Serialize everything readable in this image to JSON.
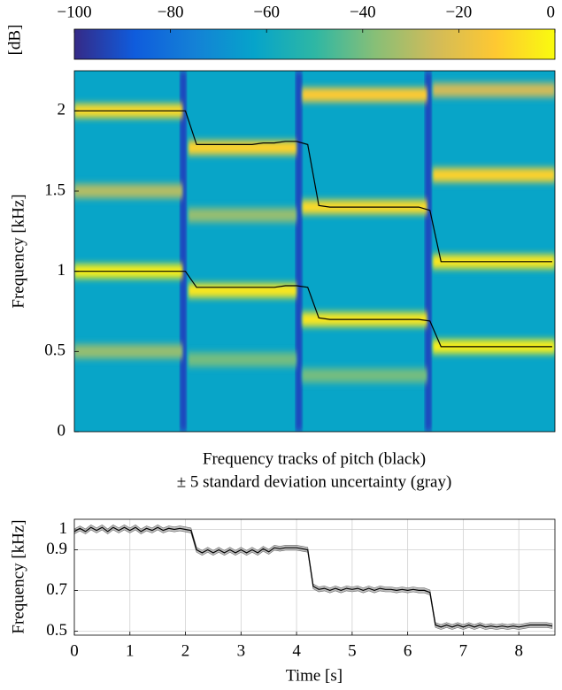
{
  "chart_data": [
    {
      "type": "heatmap",
      "colorbar_label": "[dB]",
      "clim": [
        -100,
        0
      ],
      "cticks": [
        {
          "value": -100,
          "label": "−100"
        },
        {
          "value": -80,
          "label": "−80"
        },
        {
          "value": -60,
          "label": "−60"
        },
        {
          "value": -40,
          "label": "−40"
        },
        {
          "value": -20,
          "label": "−20"
        },
        0
      ],
      "colormap": [
        "#352a87",
        "#0f5cdd",
        "#1481d6",
        "#06a4ca",
        "#2eb7a4",
        "#87bf77",
        "#d1bb59",
        "#fec832",
        "#f9fb0e"
      ],
      "background_level": -62,
      "onset_level": -92,
      "onsets": [
        1.96,
        4.04,
        6.37
      ],
      "ylabel": "Frequency [kHz]",
      "xlim": [
        0,
        8.65
      ],
      "ylim": [
        0,
        2.25
      ],
      "yticks": [
        0,
        0.5,
        1,
        1.5,
        2
      ],
      "bands": [
        {
          "x0": 0,
          "x1": 1.95,
          "f": 1.0,
          "level": -3
        },
        {
          "x0": 0,
          "x1": 1.95,
          "f": 2.0,
          "level": -8
        },
        {
          "x0": 0,
          "x1": 1.95,
          "f": 1.5,
          "level": -30
        },
        {
          "x0": 0,
          "x1": 1.95,
          "f": 0.5,
          "level": -35
        },
        {
          "x0": 2.05,
          "x1": 4.0,
          "f": 0.88,
          "level": -5
        },
        {
          "x0": 2.05,
          "x1": 4.0,
          "f": 1.77,
          "level": -10
        },
        {
          "x0": 2.05,
          "x1": 4.0,
          "f": 1.35,
          "level": -35
        },
        {
          "x0": 2.05,
          "x1": 4.0,
          "f": 0.45,
          "level": -40
        },
        {
          "x0": 4.1,
          "x1": 6.35,
          "f": 0.7,
          "level": -5
        },
        {
          "x0": 4.1,
          "x1": 6.35,
          "f": 1.4,
          "level": -8
        },
        {
          "x0": 4.1,
          "x1": 6.35,
          "f": 2.1,
          "level": -12
        },
        {
          "x0": 4.1,
          "x1": 6.35,
          "f": 0.35,
          "level": -40
        },
        {
          "x0": 6.45,
          "x1": 8.65,
          "f": 0.53,
          "level": -3
        },
        {
          "x0": 6.45,
          "x1": 8.65,
          "f": 1.06,
          "level": -5
        },
        {
          "x0": 6.45,
          "x1": 8.65,
          "f": 1.6,
          "level": -10
        },
        {
          "x0": 6.45,
          "x1": 8.65,
          "f": 2.13,
          "level": -25
        }
      ],
      "x": [
        0,
        0.2,
        0.4,
        0.6,
        0.8,
        1.0,
        1.2,
        1.4,
        1.6,
        1.8,
        2.0,
        2.2,
        2.4,
        2.6,
        2.8,
        3.0,
        3.2,
        3.4,
        3.6,
        3.8,
        4.0,
        4.2,
        4.4,
        4.6,
        4.8,
        5.0,
        5.2,
        5.4,
        5.6,
        5.8,
        6.0,
        6.2,
        6.4,
        6.6,
        6.8,
        7.0,
        7.2,
        7.4,
        7.6,
        7.8,
        8.0,
        8.2,
        8.4,
        8.6
      ],
      "series": [
        {
          "color": "#000000",
          "values": [
            1.0,
            1.0,
            1.0,
            1.0,
            1.0,
            1.0,
            1.0,
            1.0,
            1.0,
            1.0,
            1.0,
            0.9,
            0.9,
            0.9,
            0.9,
            0.9,
            0.9,
            0.9,
            0.9,
            0.91,
            0.91,
            0.9,
            0.71,
            0.7,
            0.7,
            0.7,
            0.7,
            0.7,
            0.7,
            0.7,
            0.7,
            0.7,
            0.69,
            0.53,
            0.53,
            0.53,
            0.53,
            0.53,
            0.53,
            0.53,
            0.53,
            0.53,
            0.53,
            0.53
          ]
        },
        {
          "color": "#000000",
          "values": [
            2.0,
            2.0,
            2.0,
            2.0,
            2.0,
            2.0,
            2.0,
            2.0,
            2.0,
            2.0,
            2.0,
            1.79,
            1.79,
            1.79,
            1.79,
            1.79,
            1.79,
            1.8,
            1.8,
            1.81,
            1.81,
            1.79,
            1.41,
            1.4,
            1.4,
            1.4,
            1.4,
            1.4,
            1.4,
            1.4,
            1.4,
            1.4,
            1.38,
            1.06,
            1.06,
            1.06,
            1.06,
            1.06,
            1.06,
            1.06,
            1.06,
            1.06,
            1.06,
            1.06
          ]
        }
      ],
      "caption": [
        "Frequency tracks of pitch (black)",
        "± 5 standard deviation uncertainty (gray)"
      ]
    },
    {
      "type": "line",
      "xlabel": "Time [s]",
      "ylabel": "Frequency [kHz]",
      "xlim": [
        0,
        8.65
      ],
      "ylim": [
        0.48,
        1.05
      ],
      "xticks": [
        0,
        1,
        2,
        3,
        4,
        5,
        6,
        7,
        8
      ],
      "yticks": [
        0.5,
        0.7,
        0.9,
        1
      ],
      "grid": true,
      "band_halfwidth": 0.012,
      "band_color": "#aaaaaa",
      "x": [
        0,
        0.1,
        0.2,
        0.3,
        0.4,
        0.5,
        0.6,
        0.7,
        0.8,
        0.9,
        1.0,
        1.1,
        1.2,
        1.3,
        1.4,
        1.5,
        1.6,
        1.7,
        1.8,
        1.9,
        2.0,
        2.1,
        2.2,
        2.3,
        2.4,
        2.5,
        2.6,
        2.7,
        2.8,
        2.9,
        3.0,
        3.1,
        3.2,
        3.3,
        3.4,
        3.5,
        3.6,
        3.7,
        3.8,
        3.9,
        4.0,
        4.1,
        4.2,
        4.3,
        4.4,
        4.5,
        4.6,
        4.7,
        4.8,
        4.9,
        5.0,
        5.1,
        5.2,
        5.3,
        5.4,
        5.5,
        5.6,
        5.7,
        5.8,
        5.9,
        6.0,
        6.1,
        6.2,
        6.3,
        6.4,
        6.5,
        6.6,
        6.7,
        6.8,
        6.9,
        7.0,
        7.1,
        7.2,
        7.3,
        7.4,
        7.5,
        7.6,
        7.7,
        7.8,
        7.9,
        8.0,
        8.1,
        8.2,
        8.3,
        8.4,
        8.5,
        8.6
      ],
      "series": [
        {
          "color": "#000000",
          "values": [
            0.99,
            1.005,
            0.99,
            1.01,
            0.995,
            1.01,
            0.99,
            1.01,
            0.995,
            1.01,
            0.995,
            1.01,
            0.99,
            1.005,
            0.995,
            1.01,
            0.995,
            1.005,
            1.0,
            1.005,
            1.0,
            0.995,
            0.9,
            0.885,
            0.9,
            0.885,
            0.9,
            0.885,
            0.9,
            0.885,
            0.9,
            0.885,
            0.9,
            0.885,
            0.905,
            0.89,
            0.91,
            0.905,
            0.91,
            0.91,
            0.91,
            0.905,
            0.9,
            0.72,
            0.705,
            0.71,
            0.7,
            0.71,
            0.7,
            0.71,
            0.705,
            0.71,
            0.7,
            0.71,
            0.7,
            0.71,
            0.705,
            0.705,
            0.7,
            0.705,
            0.7,
            0.705,
            0.7,
            0.7,
            0.69,
            0.53,
            0.52,
            0.53,
            0.52,
            0.53,
            0.52,
            0.53,
            0.52,
            0.53,
            0.52,
            0.525,
            0.52,
            0.525,
            0.52,
            0.525,
            0.52,
            0.525,
            0.53,
            0.53,
            0.53,
            0.53,
            0.525
          ]
        }
      ]
    }
  ]
}
